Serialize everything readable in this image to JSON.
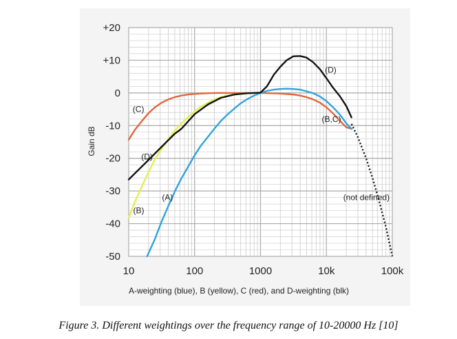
{
  "chart_data": {
    "type": "line",
    "xlabel": "A-weighting (blue), B (yellow), C (red), and D-weighting (blk)",
    "ylabel": "Gain dB",
    "xscale": "log",
    "xlim": [
      10,
      100000
    ],
    "ylim": [
      -50,
      20
    ],
    "x_tick_labels": [
      "10",
      "100",
      "1000",
      "10k",
      "100k"
    ],
    "y_tick_labels": [
      "+20",
      "+10",
      "0",
      "-10",
      "-20",
      "-30",
      "-40",
      "-50"
    ],
    "grid": true,
    "series": [
      {
        "name": "(A)",
        "color": "#2ea3dc",
        "x": [
          19,
          25,
          31.5,
          40,
          50,
          63,
          80,
          100,
          125,
          160,
          200,
          250,
          315,
          400,
          500,
          630,
          800,
          1000,
          1250,
          1600,
          2000,
          2500,
          3150,
          4000,
          5000,
          6300,
          8000,
          10000,
          12500,
          16000,
          20000,
          24000
        ],
        "y": [
          -50,
          -44.7,
          -39.4,
          -34.6,
          -30.2,
          -26.2,
          -22.5,
          -19.1,
          -16.1,
          -13.4,
          -10.9,
          -8.6,
          -6.6,
          -4.8,
          -3.2,
          -1.9,
          -0.8,
          0,
          0.6,
          1.0,
          1.2,
          1.3,
          1.2,
          1.0,
          0.5,
          -0.1,
          -1.1,
          -2.5,
          -4.3,
          -6.6,
          -9.3,
          -11
        ]
      },
      {
        "name": "(B)",
        "color": "#e6ee50",
        "x": [
          10,
          12.5,
          16,
          20,
          25,
          31.5,
          40,
          50,
          63,
          80,
          100,
          125,
          160,
          200,
          250,
          315,
          400,
          500,
          630,
          800,
          1000
        ],
        "y": [
          -38.2,
          -33.2,
          -28.5,
          -24.2,
          -20.4,
          -17.1,
          -14.2,
          -11.6,
          -9.3,
          -7.4,
          -5.6,
          -4.2,
          -3.0,
          -2.0,
          -1.3,
          -0.8,
          -0.5,
          -0.3,
          -0.1,
          0,
          0
        ]
      },
      {
        "name": "(C)",
        "color": "#e0663a",
        "x": [
          10,
          12.5,
          16,
          20,
          25,
          31.5,
          40,
          50,
          63,
          80,
          100,
          160,
          200,
          400,
          1000,
          2000,
          3150,
          4000,
          5000,
          6300,
          8000,
          10000,
          12500,
          16000,
          20000,
          24000
        ],
        "y": [
          -14.3,
          -11.2,
          -8.5,
          -6.2,
          -4.4,
          -3.0,
          -2.0,
          -1.3,
          -0.8,
          -0.5,
          -0.3,
          -0.1,
          0,
          0,
          0,
          -0.2,
          -0.5,
          -0.8,
          -1.3,
          -2.0,
          -3.0,
          -4.4,
          -6.2,
          -8.5,
          -10.5,
          -11
        ]
      },
      {
        "name": "(D)",
        "color": "#111111",
        "x": [
          10,
          20,
          31.5,
          50,
          63,
          100,
          160,
          250,
          400,
          630,
          800,
          1000,
          1250,
          1600,
          2000,
          2500,
          3150,
          4000,
          5000,
          6300,
          8000,
          10000,
          12500,
          16000,
          20000,
          24000
        ],
        "y": [
          -26.5,
          -20.5,
          -16.5,
          -12.5,
          -11,
          -6.5,
          -3.5,
          -1.5,
          -0.5,
          -0.1,
          0,
          0.1,
          2,
          5.6,
          8,
          10,
          11.2,
          11.3,
          10.8,
          9.4,
          7.2,
          4.5,
          1.7,
          -1.0,
          -4.0,
          -7.5
        ]
      }
    ],
    "extension_undefined": {
      "x": [
        24000,
        30000,
        40000,
        50000,
        63000,
        80000,
        100000
      ],
      "y": [
        -9.5,
        -13.5,
        -20,
        -26,
        -33,
        -41,
        -50
      ]
    },
    "annotations": [
      {
        "text": "(A)",
        "x": 32,
        "y": -32
      },
      {
        "text": "(B)",
        "x": 11.7,
        "y": -36
      },
      {
        "text": "(C)",
        "x": 11.5,
        "y": -5
      },
      {
        "text": "(D)",
        "x": 15.5,
        "y": -19.5
      },
      {
        "text": "(D)",
        "x": 9500,
        "y": 7
      },
      {
        "text": "(B,C)",
        "x": 8500,
        "y": -8
      },
      {
        "text": "(not defined)",
        "x": 18000,
        "y": -32
      }
    ]
  },
  "caption": "Figure 3. Different weightings over the frequency range of 10-20000 Hz [10]"
}
